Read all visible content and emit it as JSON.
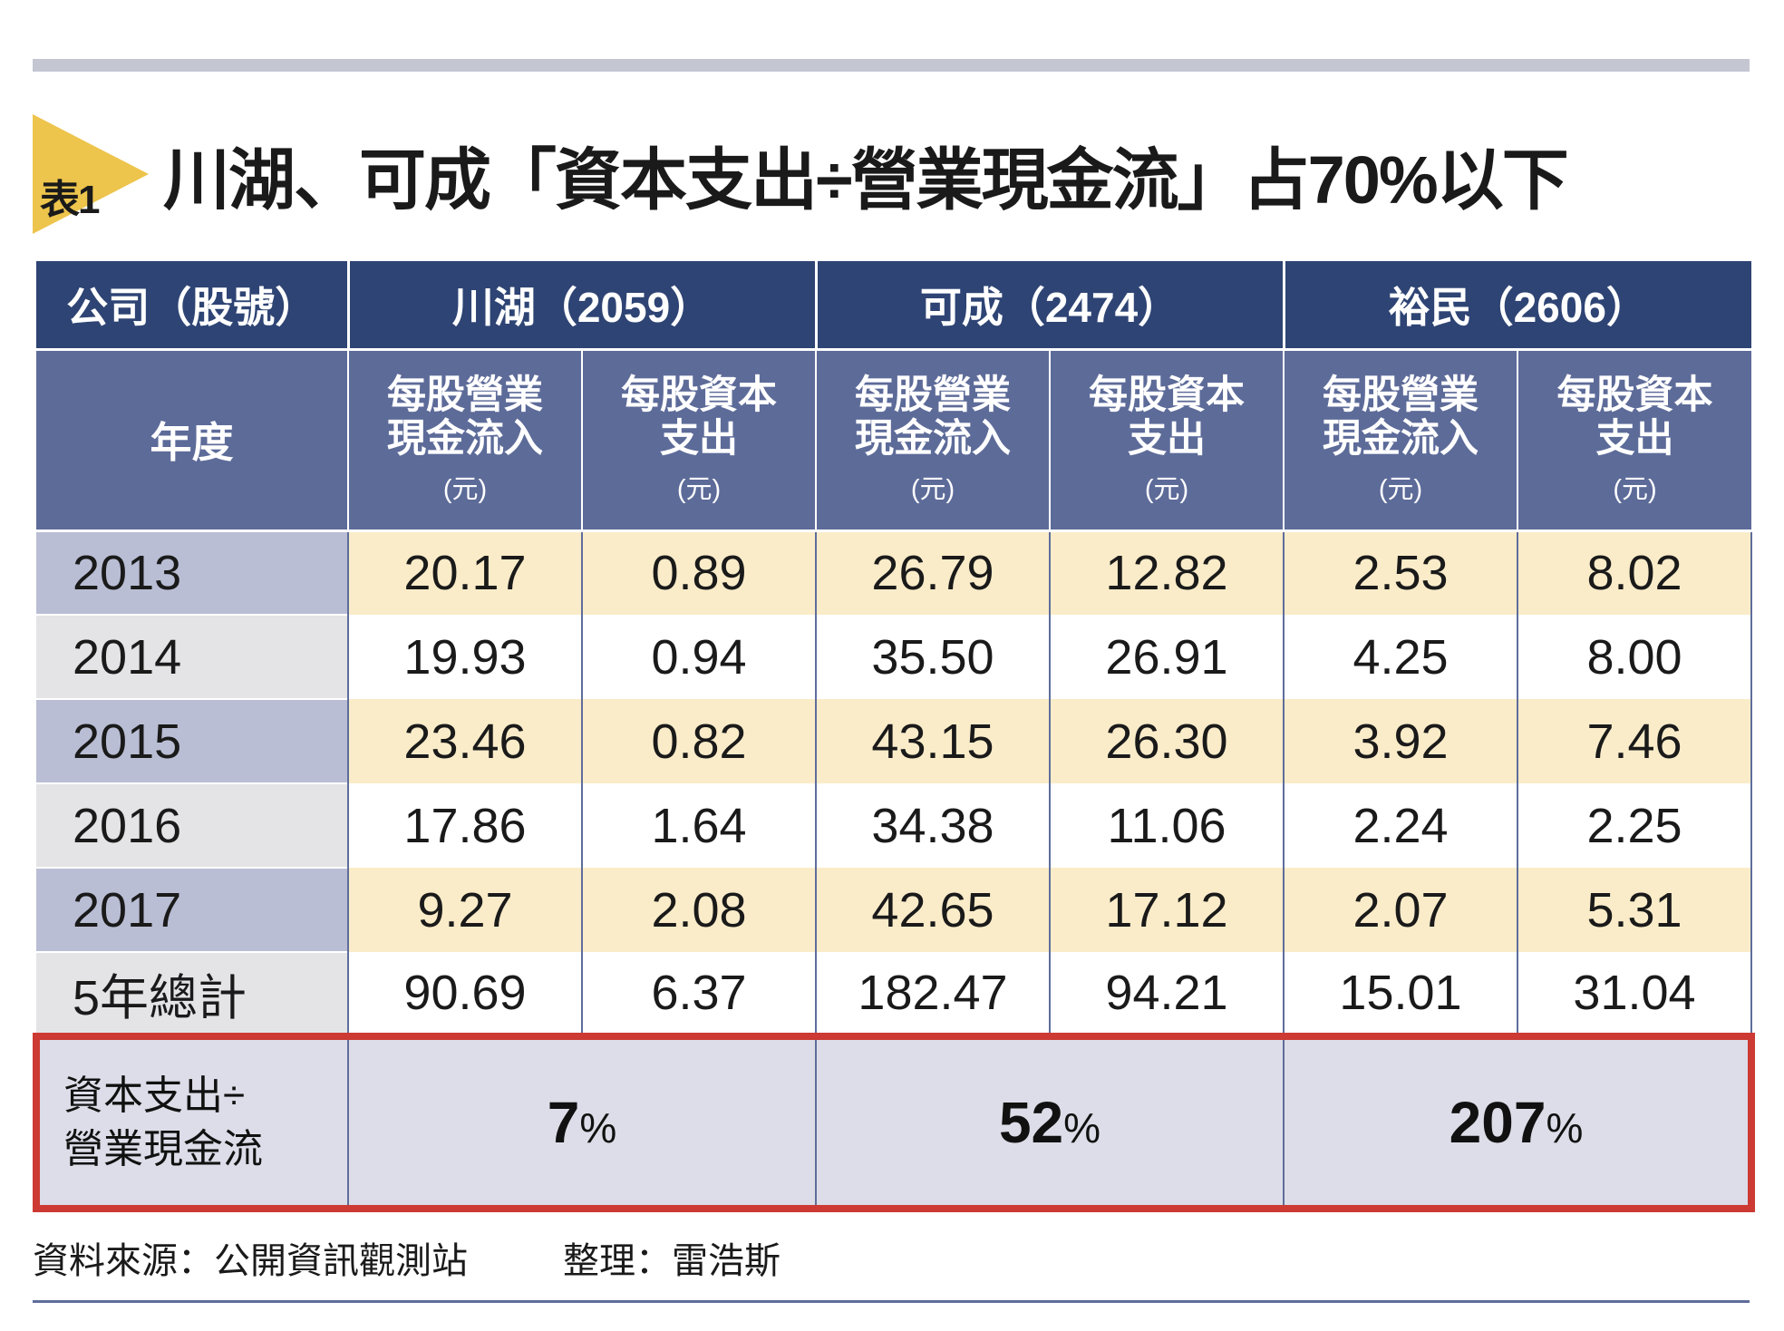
{
  "badge": {
    "label": "表1"
  },
  "title": "川湖、可成「資本支出÷營業現金流」占70%以下",
  "table": {
    "corner_header": "公司（股號）",
    "year_header": "年度",
    "companies": [
      {
        "name": "川湖（2059）"
      },
      {
        "name": "可成（2474）"
      },
      {
        "name": "裕民（2606）"
      }
    ],
    "metrics": [
      {
        "line1": "每股營業",
        "line2": "現金流入",
        "unit": "(元)"
      },
      {
        "line1": "每股資本",
        "line2": "支出",
        "unit": "(元)"
      }
    ],
    "rows": [
      {
        "year": "2013",
        "values": [
          "20.17",
          "0.89",
          "26.79",
          "12.82",
          "2.53",
          "8.02"
        ]
      },
      {
        "year": "2014",
        "values": [
          "19.93",
          "0.94",
          "35.50",
          "26.91",
          "4.25",
          "8.00"
        ]
      },
      {
        "year": "2015",
        "values": [
          "23.46",
          "0.82",
          "43.15",
          "26.30",
          "3.92",
          "7.46"
        ]
      },
      {
        "year": "2016",
        "values": [
          "17.86",
          "1.64",
          "34.38",
          "11.06",
          "2.24",
          "2.25"
        ]
      },
      {
        "year": "2017",
        "values": [
          "9.27",
          "2.08",
          "42.65",
          "17.12",
          "2.07",
          "5.31"
        ]
      },
      {
        "year": "5年總計",
        "values": [
          "90.69",
          "6.37",
          "182.47",
          "94.21",
          "15.01",
          "31.04"
        ]
      }
    ],
    "ratio_row": {
      "label_line1": "資本支出÷",
      "label_line2": "營業現金流",
      "values": [
        {
          "number": "7",
          "percent": "%"
        },
        {
          "number": "52",
          "percent": "%"
        },
        {
          "number": "207",
          "percent": "%"
        }
      ]
    }
  },
  "footer": {
    "source": "資料來源：公開資訊觀測站",
    "editor": "整理：雷浩斯"
  },
  "colors": {
    "header_navy": "#2e4474",
    "subheader_blue": "#5d6b99",
    "year_cell_odd": "#b9bed4",
    "year_cell_even": "#e4e4e7",
    "data_cell_odd": "#faecc9",
    "data_cell_even": "#ffffff",
    "ratio_row_bg": "#dcdde8",
    "ratio_border_red": "#cc3a33",
    "badge_yellow": "#edc44c",
    "top_bar_gray": "#c4c7d2",
    "column_divider_blue": "#5f6d9b"
  },
  "chart_data": {
    "type": "table",
    "title": "川湖、可成「資本支出÷營業現金流」占70%以下",
    "companies": [
      "川湖（2059）",
      "可成（2474）",
      "裕民（2606）"
    ],
    "column_headers": [
      "年度",
      "川湖 每股營業現金流入(元)",
      "川湖 每股資本支出(元)",
      "可成 每股營業現金流入(元)",
      "可成 每股資本支出(元)",
      "裕民 每股營業現金流入(元)",
      "裕民 每股資本支出(元)"
    ],
    "rows": [
      [
        "2013",
        20.17,
        0.89,
        26.79,
        12.82,
        2.53,
        8.02
      ],
      [
        "2014",
        19.93,
        0.94,
        35.5,
        26.91,
        4.25,
        8.0
      ],
      [
        "2015",
        23.46,
        0.82,
        43.15,
        26.3,
        3.92,
        7.46
      ],
      [
        "2016",
        17.86,
        1.64,
        34.38,
        11.06,
        2.24,
        2.25
      ],
      [
        "2017",
        9.27,
        2.08,
        42.65,
        17.12,
        2.07,
        5.31
      ],
      [
        "5年總計",
        90.69,
        6.37,
        182.47,
        94.21,
        15.01,
        31.04
      ]
    ],
    "capex_div_ocf_percent": {
      "川湖（2059）": 7,
      "可成（2474）": 52,
      "裕民（2606）": 207
    },
    "source": "資料來源：公開資訊觀測站",
    "compiled_by": "整理：雷浩斯"
  }
}
